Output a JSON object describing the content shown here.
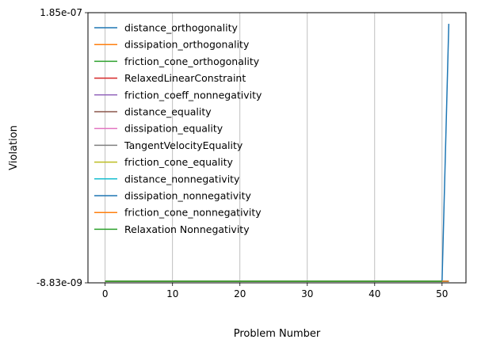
{
  "chart_data": {
    "type": "line",
    "title": "",
    "xlabel": "Problem Number",
    "ylabel": "Violation",
    "xlim": [
      -2.55,
      53.55
    ],
    "ylim": [
      -8.83e-09,
      1.85e-07
    ],
    "xticks": [
      0,
      10,
      20,
      30,
      40,
      50
    ],
    "xtick_labels": [
      "0",
      "10",
      "20",
      "30",
      "40",
      "50"
    ],
    "yticks": [
      -8.83e-09,
      1.85e-07
    ],
    "ytick_labels": [
      "-8.83e-09",
      "1.85e-07"
    ],
    "grid": "x-major",
    "legend_position": "upper left",
    "baseline_value": -7.7e-09,
    "series": [
      {
        "name": "distance_orthogonality",
        "color": "#1f77b4",
        "x_range": [
          0,
          51
        ],
        "spike": {
          "x": [
            50,
            51
          ],
          "y": [
            -7.7e-09,
            1.77e-07
          ]
        }
      },
      {
        "name": "dissipation_orthogonality",
        "color": "#ff7f0e",
        "x_range": [
          0,
          51
        ]
      },
      {
        "name": "friction_cone_orthogonality",
        "color": "#2ca02c",
        "x_range": [
          0,
          51
        ]
      },
      {
        "name": "RelaxedLinearConstraint",
        "color": "#d62728",
        "x_range": [
          0,
          51
        ]
      },
      {
        "name": "friction_coeff_nonnegativity",
        "color": "#9467bd",
        "x_range": [
          0,
          51
        ]
      },
      {
        "name": "distance_equality",
        "color": "#8c564b",
        "x_range": [
          0,
          51
        ]
      },
      {
        "name": "dissipation_equality",
        "color": "#e377c2",
        "x_range": [
          0,
          51
        ]
      },
      {
        "name": "TangentVelocityEquality",
        "color": "#7f7f7f",
        "x_range": [
          0,
          51
        ]
      },
      {
        "name": "friction_cone_equality",
        "color": "#bcbd22",
        "x_range": [
          0,
          51
        ]
      },
      {
        "name": "distance_nonnegativity",
        "color": "#17becf",
        "x_range": [
          0,
          51
        ]
      },
      {
        "name": "dissipation_nonnegativity",
        "color": "#1f77b4",
        "x_range": [
          0,
          51
        ]
      },
      {
        "name": "friction_cone_nonnegativity",
        "color": "#ff7f0e",
        "x_range": [
          0,
          51
        ]
      },
      {
        "name": "Relaxation Nonnegativity",
        "color": "#2ca02c",
        "x_range": [
          0,
          50
        ]
      }
    ]
  }
}
